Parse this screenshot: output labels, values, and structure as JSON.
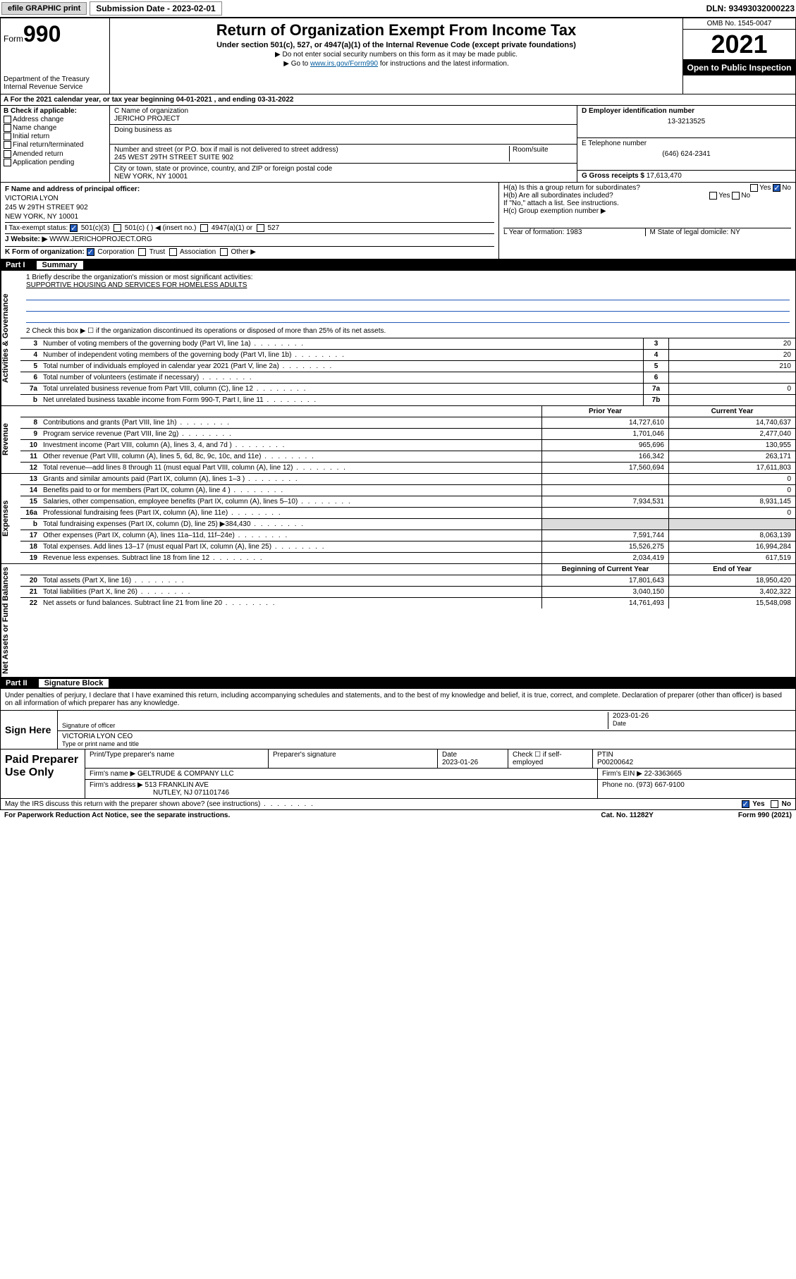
{
  "topbar": {
    "efile": "efile GRAPHIC print",
    "sub_label": "Submission Date - 2023-02-01",
    "dln": "DLN: 93493032000223"
  },
  "header": {
    "form_prefix": "Form",
    "form_num": "990",
    "dept": "Department of the Treasury\nInternal Revenue Service",
    "title": "Return of Organization Exempt From Income Tax",
    "subtitle": "Under section 501(c), 527, or 4947(a)(1) of the Internal Revenue Code (except private foundations)",
    "note1": "▶ Do not enter social security numbers on this form as it may be made public.",
    "note2_pre": "▶ Go to ",
    "note2_link": "www.irs.gov/Form990",
    "note2_post": " for instructions and the latest information.",
    "omb": "OMB No. 1545-0047",
    "year": "2021",
    "inspect": "Open to Public Inspection"
  },
  "line_a": "For the 2021 calendar year, or tax year beginning 04-01-2021   , and ending 03-31-2022",
  "col_b": {
    "label": "B Check if applicable:",
    "items": [
      "Address change",
      "Name change",
      "Initial return",
      "Final return/terminated",
      "Amended return",
      "Application pending"
    ]
  },
  "col_c": {
    "name_label": "C Name of organization",
    "name": "JERICHO PROJECT",
    "dba_label": "Doing business as",
    "street_label": "Number and street (or P.O. box if mail is not delivered to street address)",
    "room_label": "Room/suite",
    "street": "245 WEST 29TH STREET SUITE 902",
    "city_label": "City or town, state or province, country, and ZIP or foreign postal code",
    "city": "NEW YORK, NY  10001"
  },
  "col_d": {
    "ein_label": "D Employer identification number",
    "ein": "13-3213525",
    "phone_label": "E Telephone number",
    "phone": "(646) 624-2341",
    "gross_label": "G Gross receipts $",
    "gross": "17,613,470"
  },
  "block_f": {
    "f_label": "F Name and address of principal officer:",
    "f_name": "VICTORIA LYON",
    "f_addr1": "245 W 29TH STREET 902",
    "f_addr2": "NEW YORK, NY  10001",
    "i_label": "Tax-exempt status:",
    "i_opts": [
      "501(c)(3)",
      "501(c) (   ) ◀ (insert no.)",
      "4947(a)(1) or",
      "527"
    ],
    "j_label": "Website: ▶",
    "j_val": "WWW.JERICHOPROJECT.ORG",
    "k_label": "K Form of organization:",
    "k_opts": [
      "Corporation",
      "Trust",
      "Association",
      "Other ▶"
    ]
  },
  "block_h": {
    "ha": "H(a)  Is this a group return for subordinates?",
    "ha_ans": "No",
    "hb": "H(b)  Are all subordinates included?",
    "hb_note": "If \"No,\" attach a list. See instructions.",
    "hc": "H(c)  Group exemption number ▶",
    "l": "L Year of formation: 1983",
    "m": "M State of legal domicile: NY"
  },
  "part1": {
    "label": "Part I",
    "title": "Summary"
  },
  "mission": {
    "q1": "1  Briefly describe the organization's mission or most significant activities:",
    "text": "SUPPORTIVE HOUSING AND SERVICES FOR HOMELESS ADULTS",
    "q2": "2   Check this box ▶ ☐  if the organization discontinued its operations or disposed of more than 25% of its net assets."
  },
  "governance_rows": [
    {
      "n": "3",
      "t": "Number of voting members of the governing body (Part VI, line 1a)",
      "box": "3",
      "v": "20"
    },
    {
      "n": "4",
      "t": "Number of independent voting members of the governing body (Part VI, line 1b)",
      "box": "4",
      "v": "20"
    },
    {
      "n": "5",
      "t": "Total number of individuals employed in calendar year 2021 (Part V, line 2a)",
      "box": "5",
      "v": "210"
    },
    {
      "n": "6",
      "t": "Total number of volunteers (estimate if necessary)",
      "box": "6",
      "v": ""
    },
    {
      "n": "7a",
      "t": "Total unrelated business revenue from Part VIII, column (C), line 12",
      "box": "7a",
      "v": "0"
    },
    {
      "n": "b",
      "t": "Net unrelated business taxable income from Form 990-T, Part I, line 11",
      "box": "7b",
      "v": ""
    }
  ],
  "col_headers": {
    "prior": "Prior Year",
    "current": "Current Year"
  },
  "revenue_rows": [
    {
      "n": "8",
      "t": "Contributions and grants (Part VIII, line 1h)",
      "p": "14,727,610",
      "c": "14,740,637"
    },
    {
      "n": "9",
      "t": "Program service revenue (Part VIII, line 2g)",
      "p": "1,701,046",
      "c": "2,477,040"
    },
    {
      "n": "10",
      "t": "Investment income (Part VIII, column (A), lines 3, 4, and 7d )",
      "p": "965,696",
      "c": "130,955"
    },
    {
      "n": "11",
      "t": "Other revenue (Part VIII, column (A), lines 5, 6d, 8c, 9c, 10c, and 11e)",
      "p": "166,342",
      "c": "263,171"
    },
    {
      "n": "12",
      "t": "Total revenue—add lines 8 through 11 (must equal Part VIII, column (A), line 12)",
      "p": "17,560,694",
      "c": "17,611,803"
    }
  ],
  "expense_rows": [
    {
      "n": "13",
      "t": "Grants and similar amounts paid (Part IX, column (A), lines 1–3 )",
      "p": "",
      "c": "0"
    },
    {
      "n": "14",
      "t": "Benefits paid to or for members (Part IX, column (A), line 4 )",
      "p": "",
      "c": "0"
    },
    {
      "n": "15",
      "t": "Salaries, other compensation, employee benefits (Part IX, column (A), lines 5–10)",
      "p": "7,934,531",
      "c": "8,931,145"
    },
    {
      "n": "16a",
      "t": "Professional fundraising fees (Part IX, column (A), line 11e)",
      "p": "",
      "c": "0"
    },
    {
      "n": "b",
      "t": "Total fundraising expenses (Part IX, column (D), line 25) ▶384,430",
      "p": "shade",
      "c": "shade"
    },
    {
      "n": "17",
      "t": "Other expenses (Part IX, column (A), lines 11a–11d, 11f–24e)",
      "p": "7,591,744",
      "c": "8,063,139"
    },
    {
      "n": "18",
      "t": "Total expenses. Add lines 13–17 (must equal Part IX, column (A), line 25)",
      "p": "15,526,275",
      "c": "16,994,284"
    },
    {
      "n": "19",
      "t": "Revenue less expenses. Subtract line 18 from line 12",
      "p": "2,034,419",
      "c": "617,519"
    }
  ],
  "balance_headers": {
    "begin": "Beginning of Current Year",
    "end": "End of Year"
  },
  "balance_rows": [
    {
      "n": "20",
      "t": "Total assets (Part X, line 16)",
      "p": "17,801,643",
      "c": "18,950,420"
    },
    {
      "n": "21",
      "t": "Total liabilities (Part X, line 26)",
      "p": "3,040,150",
      "c": "3,402,322"
    },
    {
      "n": "22",
      "t": "Net assets or fund balances. Subtract line 21 from line 20",
      "p": "14,761,493",
      "c": "15,548,098"
    }
  ],
  "part2": {
    "label": "Part II",
    "title": "Signature Block"
  },
  "sig": {
    "decl": "Under penalties of perjury, I declare that I have examined this return, including accompanying schedules and statements, and to the best of my knowledge and belief, it is true, correct, and complete. Declaration of preparer (other than officer) is based on all information of which preparer has any knowledge.",
    "sign_here": "Sign Here",
    "sig_officer": "Signature of officer",
    "date": "Date",
    "date_val": "2023-01-26",
    "name_title": "VICTORIA LYON  CEO",
    "type_name": "Type or print name and title"
  },
  "prep": {
    "label": "Paid Preparer Use Only",
    "h_name": "Print/Type preparer's name",
    "h_sig": "Preparer's signature",
    "h_date": "Date",
    "h_date_val": "2023-01-26",
    "h_check": "Check ☐ if self-employed",
    "h_ptin": "PTIN",
    "ptin": "P00200642",
    "firm_name_l": "Firm's name    ▶",
    "firm_name": "GELTRUDE & COMPANY LLC",
    "firm_ein_l": "Firm's EIN ▶",
    "firm_ein": "22-3363665",
    "firm_addr_l": "Firm's address ▶",
    "firm_addr1": "513 FRANKLIN AVE",
    "firm_addr2": "NUTLEY, NJ  071101746",
    "phone_l": "Phone no.",
    "phone": "(973) 667-9100"
  },
  "footer": {
    "discuss": "May the IRS discuss this return with the preparer shown above? (see instructions)",
    "yes": "Yes",
    "no": "No",
    "paperwork": "For Paperwork Reduction Act Notice, see the separate instructions.",
    "cat": "Cat. No. 11282Y",
    "form": "Form 990 (2021)"
  },
  "side_labels": {
    "gov": "Activities & Governance",
    "rev": "Revenue",
    "exp": "Expenses",
    "bal": "Net Assets or Fund Balances"
  }
}
